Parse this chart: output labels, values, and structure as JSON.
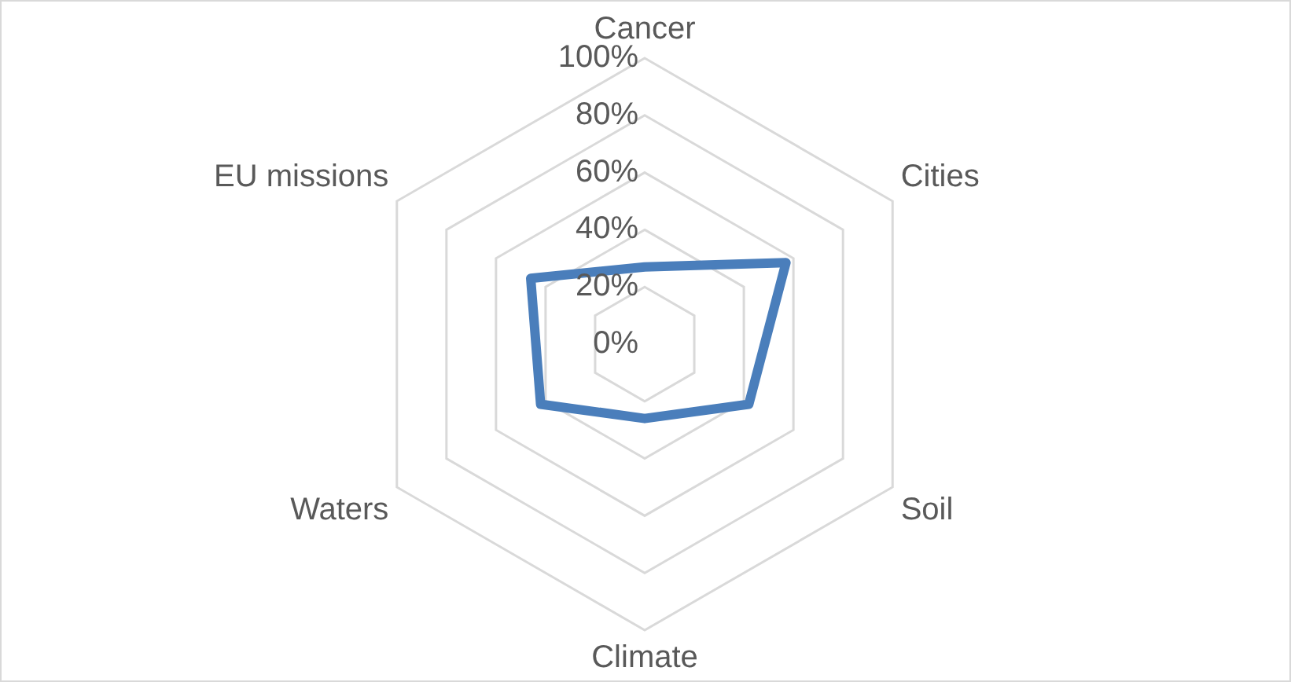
{
  "chart_data": {
    "type": "radar",
    "categories": [
      "Cancer",
      "Cities",
      "Soil",
      "Climate",
      "Waters",
      "EU missions"
    ],
    "series": [
      {
        "color": "#4a7ebb",
        "values": [
          27,
          57,
          42,
          26,
          42,
          46
        ]
      }
    ],
    "ylim": [
      0,
      100
    ],
    "yticks": [
      {
        "value": 0,
        "label": "0%"
      },
      {
        "value": 20,
        "label": "20%"
      },
      {
        "value": 40,
        "label": "40%"
      },
      {
        "value": 60,
        "label": "60%"
      },
      {
        "value": 80,
        "label": "80%"
      },
      {
        "value": 100,
        "label": "100%"
      }
    ],
    "grid": true,
    "legend": false,
    "marker": "none"
  }
}
